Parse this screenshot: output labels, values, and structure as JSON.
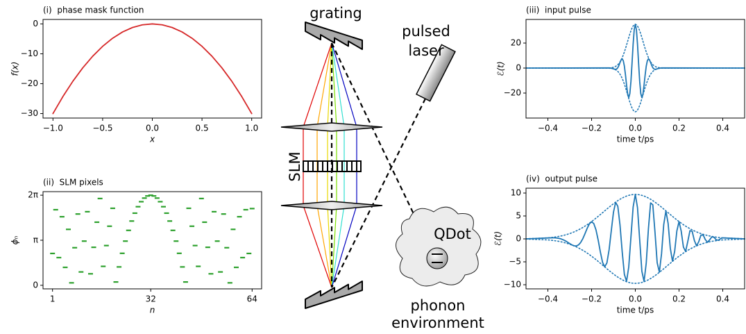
{
  "chart_data": [
    {
      "type": "line",
      "title": "(i)  phase mask function",
      "x_label": "x",
      "y_label": "f(x)",
      "x": [
        -1,
        -0.9,
        -0.8,
        -0.7,
        -0.6,
        -0.5,
        -0.4,
        -0.3,
        -0.2,
        -0.1,
        0,
        0.1,
        0.2,
        0.3,
        0.4,
        0.5,
        0.6,
        0.7,
        0.8,
        0.9,
        1
      ],
      "series": [
        {
          "color": "#d62728",
          "linestyle": "solid",
          "values": [
            -30,
            -24.3,
            -19.2,
            -14.7,
            -10.8,
            -7.5,
            -4.8,
            -2.7,
            -1.2,
            -0.3,
            0,
            -0.3,
            -1.2,
            -2.7,
            -4.8,
            -7.5,
            -10.8,
            -14.7,
            -19.2,
            -24.3,
            -30
          ]
        }
      ],
      "xlim": [
        -1.1,
        1.1
      ],
      "ylim": [
        -31.5,
        1.5
      ],
      "xticks": [
        {
          "value": -1,
          "label": "−1.0"
        },
        {
          "value": -0.5,
          "label": "−0.5"
        },
        {
          "value": 0,
          "label": "0.0"
        },
        {
          "value": 0.5,
          "label": "0.5"
        },
        {
          "value": 1,
          "label": "1.0"
        }
      ],
      "yticks": [
        0,
        {
          "value": -10,
          "label": "−10"
        },
        {
          "value": -20,
          "label": "−20"
        },
        {
          "value": -30,
          "label": "−30"
        }
      ]
    },
    {
      "type": "scatter",
      "title": "(ii)  SLM pixels",
      "x_label": "n",
      "y_label": "ϕₙ",
      "marker": "hline",
      "x": [
        1,
        2,
        3,
        4,
        5,
        6,
        7,
        8,
        9,
        10,
        11,
        12,
        13,
        14,
        15,
        16,
        17,
        18,
        19,
        20,
        21,
        22,
        23,
        24,
        25,
        26,
        27,
        28,
        29,
        30,
        31,
        32,
        33,
        34,
        35,
        36,
        37,
        38,
        39,
        40,
        41,
        42,
        43,
        44,
        45,
        46,
        47,
        48,
        49,
        50,
        51,
        52,
        53,
        54,
        55,
        56,
        57,
        58,
        59,
        60,
        61,
        62,
        63,
        64
      ],
      "series": [
        {
          "color": "#2ca02c",
          "values": [
            2.22,
            5.27,
            1.93,
            4.78,
            1.25,
            3.9,
            0.17,
            2.62,
            4.97,
            0.93,
            3.08,
            5.13,
            0.8,
            2.65,
            4.4,
            6.05,
            1.32,
            2.77,
            4.12,
            5.37,
            0.23,
            1.28,
            2.23,
            3.08,
            3.83,
            4.48,
            5.03,
            5.48,
            5.83,
            6.08,
            6.23,
            6.28,
            6.23,
            6.08,
            5.83,
            5.48,
            5.03,
            4.48,
            3.83,
            3.08,
            2.23,
            1.28,
            0.23,
            5.37,
            4.12,
            2.77,
            1.32,
            6.05,
            4.4,
            2.65,
            0.8,
            5.13,
            3.08,
            0.93,
            4.97,
            2.62,
            0.17,
            3.9,
            1.25,
            4.78,
            1.93,
            5.27,
            2.22,
            5.35
          ]
        }
      ],
      "xlim": [
        -2,
        67
      ],
      "ylim": [
        -0.25,
        6.53
      ],
      "xticks": [
        1,
        32,
        64
      ],
      "yticks": [
        0,
        {
          "value": 3.14159,
          "label": "π"
        },
        {
          "value": 6.28319,
          "label": "2π"
        }
      ]
    },
    {
      "type": "line",
      "title": "(iii)  input pulse",
      "x_label": "time t/ps",
      "y_label": "ℰ(t)",
      "x": [
        -0.5,
        -0.12,
        -0.115,
        -0.11,
        -0.105,
        -0.1,
        -0.095,
        -0.09,
        -0.085,
        -0.08,
        -0.075,
        -0.07,
        -0.065,
        -0.06,
        -0.055,
        -0.05,
        -0.045,
        -0.04,
        -0.035,
        -0.03,
        -0.025,
        -0.02,
        -0.015,
        -0.01,
        -0.005,
        0,
        0.005,
        0.01,
        0.015,
        0.02,
        0.025,
        0.03,
        0.035,
        0.04,
        0.045,
        0.05,
        0.055,
        0.06,
        0.065,
        0.07,
        0.075,
        0.08,
        0.085,
        0.09,
        0.095,
        0.1,
        0.105,
        0.11,
        0.115,
        0.12,
        0.5
      ],
      "series": [
        {
          "color": "#1f77b4",
          "linestyle": "solid",
          "values": [
            0,
            0.1,
            0.0,
            -0.1,
            -0.3,
            -0.6,
            -0.9,
            -1.0,
            -0.7,
            0.3,
            2.1,
            4.4,
            6.5,
            7.4,
            5.9,
            1.5,
            -5.5,
            -13.7,
            -20.8,
            -23.7,
            -20.4,
            -10.6,
            3.8,
            19.1,
            30.7,
            35.0,
            30.7,
            19.1,
            3.8,
            -10.6,
            -20.4,
            -23.7,
            -20.8,
            -13.7,
            -5.5,
            1.5,
            5.9,
            7.4,
            6.5,
            4.4,
            2.1,
            0.3,
            -0.7,
            -1.0,
            -0.9,
            -0.6,
            -0.3,
            -0.1,
            0.0,
            0.1,
            0
          ]
        },
        {
          "color": "#1f77b4",
          "linestyle": "dotted",
          "values": [
            0,
            0.11,
            0.18,
            0.28,
            0.43,
            0.64,
            0.95,
            1.37,
            1.94,
            2.7,
            3.69,
            4.93,
            6.46,
            8.3,
            10.44,
            12.88,
            15.57,
            18.45,
            21.44,
            24.42,
            27.26,
            29.82,
            31.99,
            33.63,
            34.65,
            35.0,
            34.65,
            33.63,
            31.99,
            29.82,
            27.26,
            24.42,
            21.44,
            18.45,
            15.57,
            12.88,
            10.44,
            8.3,
            6.46,
            4.93,
            3.69,
            2.7,
            1.94,
            1.37,
            0.95,
            0.64,
            0.43,
            0.28,
            0.18,
            0.11,
            0
          ]
        },
        {
          "color": "#1f77b4",
          "linestyle": "dotted",
          "values": [
            0,
            -0.11,
            -0.18,
            -0.28,
            -0.43,
            -0.64,
            -0.95,
            -1.37,
            -1.94,
            -2.7,
            -3.69,
            -4.93,
            -6.46,
            -8.3,
            -10.44,
            -12.88,
            -15.57,
            -18.45,
            -21.44,
            -24.42,
            -27.26,
            -29.82,
            -31.99,
            -33.63,
            -34.65,
            -35.0,
            -34.65,
            -33.63,
            -31.99,
            -29.82,
            -27.26,
            -24.42,
            -21.44,
            -18.45,
            -15.57,
            -12.88,
            -10.44,
            -8.3,
            -6.46,
            -4.93,
            -3.69,
            -2.7,
            -1.94,
            -1.37,
            -0.95,
            -0.64,
            -0.43,
            -0.28,
            -0.18,
            -0.11,
            0
          ]
        }
      ],
      "xlim": [
        -0.5,
        0.5
      ],
      "ylim": [
        -40,
        38.9
      ],
      "xticks": [
        {
          "value": -0.4,
          "label": "−0.4"
        },
        {
          "value": -0.2,
          "label": "−0.2"
        },
        {
          "value": 0,
          "label": "0.0"
        },
        0.2,
        0.4
      ],
      "yticks": [
        {
          "value": -20,
          "label": "−20"
        },
        0,
        20
      ]
    },
    {
      "type": "line",
      "title": "(iv)  output pulse",
      "x_label": "time t/ps",
      "y_label": "ℰ(t)",
      "x": [
        -0.5,
        -0.4,
        -0.39,
        -0.38,
        -0.37,
        -0.36,
        -0.35,
        -0.34,
        -0.33,
        -0.32,
        -0.31,
        -0.3,
        -0.29,
        -0.28,
        -0.27,
        -0.26,
        -0.25,
        -0.24,
        -0.23,
        -0.22,
        -0.21,
        -0.2,
        -0.19,
        -0.18,
        -0.17,
        -0.16,
        -0.15,
        -0.14,
        -0.13,
        -0.12,
        -0.11,
        -0.1,
        -0.09,
        -0.08,
        -0.07,
        -0.06,
        -0.05,
        -0.04,
        -0.03,
        -0.02,
        -0.01,
        0,
        0.01,
        0.02,
        0.03,
        0.04,
        0.05,
        0.06,
        0.07,
        0.08,
        0.09,
        0.1,
        0.11,
        0.12,
        0.13,
        0.14,
        0.15,
        0.16,
        0.17,
        0.18,
        0.19,
        0.2,
        0.21,
        0.22,
        0.23,
        0.24,
        0.25,
        0.26,
        0.27,
        0.28,
        0.29,
        0.3,
        0.31,
        0.32,
        0.33,
        0.34,
        0.35,
        0.36,
        0.37,
        0.38,
        0.39,
        0.4,
        0.5
      ],
      "series": [
        {
          "color": "#1f77b4",
          "linestyle": "solid",
          "values": [
            0,
            0.2,
            0.22,
            0.23,
            0.23,
            0.19,
            0.12,
            0.0,
            -0.19,
            -0.42,
            -0.71,
            -1.03,
            -1.31,
            -1.51,
            -1.54,
            -1.32,
            -0.79,
            0.06,
            1.16,
            2.33,
            3.29,
            3.73,
            3.34,
            1.98,
            -0.23,
            -2.83,
            -5.08,
            -6.1,
            -5.24,
            -2.4,
            1.74,
            5.78,
            7.98,
            7.09,
            3.01,
            -2.81,
            -7.75,
            -9.24,
            -6.11,
            0.41,
            6.93,
            9.7,
            6.82,
            -0.2,
            -7.07,
            -9.28,
            -5.26,
            2.25,
            7.86,
            7.44,
            1.48,
            -5.2,
            -7.24,
            -3.23,
            3.11,
            6.09,
            3.39,
            -2.02,
            -4.86,
            -2.73,
            1.72,
            3.77,
            1.68,
            -1.78,
            -2.74,
            -0.58,
            1.79,
            1.68,
            -0.33,
            -1.51,
            -0.64,
            0.8,
            0.91,
            -0.14,
            -0.74,
            -0.22,
            0.45,
            0.34,
            -0.2,
            -0.3,
            0.05,
            0.22,
            0
          ]
        },
        {
          "color": "#1f77b4",
          "linestyle": "dotted",
          "values": [
            0.03,
            0.224,
            0.269,
            0.323,
            0.385,
            0.458,
            0.54,
            0.636,
            0.745,
            0.869,
            1.007,
            1.163,
            1.337,
            1.53,
            1.74,
            1.972,
            2.224,
            2.497,
            2.788,
            3.099,
            3.432,
            3.778,
            4.143,
            4.52,
            4.909,
            5.308,
            5.709,
            6.111,
            6.514,
            6.909,
            7.294,
            7.663,
            8.014,
            8.342,
            8.642,
            8.911,
            9.145,
            9.341,
            9.496,
            9.609,
            9.677,
            9.7,
            9.677,
            9.609,
            9.496,
            9.341,
            9.145,
            8.911,
            8.642,
            8.342,
            8.014,
            7.663,
            7.294,
            6.909,
            6.514,
            6.111,
            5.709,
            5.308,
            4.909,
            4.52,
            4.143,
            3.778,
            3.432,
            3.099,
            2.788,
            2.497,
            2.224,
            1.972,
            1.74,
            1.53,
            1.337,
            1.163,
            1.007,
            0.869,
            0.745,
            0.636,
            0.54,
            0.458,
            0.385,
            0.323,
            0.269,
            0.224,
            0.03
          ]
        },
        {
          "color": "#1f77b4",
          "linestyle": "dotted",
          "values": [
            -0.03,
            -0.224,
            -0.269,
            -0.323,
            -0.385,
            -0.458,
            -0.54,
            -0.636,
            -0.745,
            -0.869,
            -1.007,
            -1.163,
            -1.337,
            -1.53,
            -1.74,
            -1.972,
            -2.224,
            -2.497,
            -2.788,
            -3.099,
            -3.432,
            -3.778,
            -4.143,
            -4.52,
            -4.909,
            -5.308,
            -5.709,
            -6.111,
            -6.514,
            -6.909,
            -7.294,
            -7.663,
            -8.014,
            -8.342,
            -8.642,
            -8.911,
            -9.145,
            -9.341,
            -9.496,
            -9.609,
            -9.677,
            -9.7,
            -9.677,
            -9.609,
            -9.496,
            -9.341,
            -9.145,
            -8.911,
            -8.642,
            -8.342,
            -8.014,
            -7.663,
            -7.294,
            -6.909,
            -6.514,
            -6.111,
            -5.709,
            -5.308,
            -4.909,
            -4.52,
            -4.143,
            -3.778,
            -3.432,
            -3.099,
            -2.788,
            -2.497,
            -2.224,
            -1.972,
            -1.74,
            -1.53,
            -1.337,
            -1.163,
            -1.007,
            -0.869,
            -0.745,
            -0.636,
            -0.54,
            -0.458,
            -0.385,
            -0.323,
            -0.269,
            -0.224,
            -0.03
          ]
        }
      ],
      "xlim": [
        -0.5,
        0.5
      ],
      "ylim": [
        -10.9,
        11.06
      ],
      "xticks": [
        {
          "value": -0.4,
          "label": "−0.4"
        },
        {
          "value": -0.2,
          "label": "−0.2"
        },
        {
          "value": 0,
          "label": "0.0"
        },
        0.2,
        0.4
      ],
      "yticks": [
        {
          "value": -10,
          "label": "−10"
        },
        {
          "value": -5,
          "label": "−5"
        },
        0,
        5,
        10
      ]
    }
  ],
  "diagram": {
    "grating": "grating",
    "laser": [
      "pulsed",
      "laser"
    ],
    "slm": "SLM",
    "qdot": "QDot",
    "phonon": [
      "phonon",
      "environment"
    ]
  }
}
